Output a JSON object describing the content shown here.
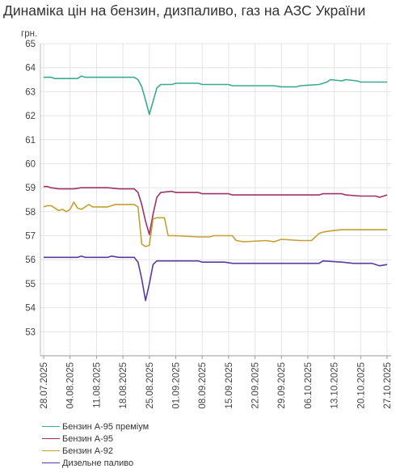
{
  "chart_data": {
    "type": "line",
    "title": "Динаміка цін на бензин, дизпаливо, газ на АЗС України",
    "ylabel": "грн.",
    "ylim": [
      52,
      65
    ],
    "yticks": [
      53,
      54,
      55,
      56,
      57,
      58,
      59,
      60,
      61,
      62,
      63,
      64,
      65
    ],
    "x_tick_labels": [
      "28.07.2025",
      "04.08.2025",
      "11.08.2025",
      "18.08.2025",
      "25.08.2025",
      "01.09.2025",
      "08.09.2025",
      "15.09.2025",
      "22.09.2025",
      "29.09.2025",
      "06.10.2025",
      "13.10.2025",
      "20.10.2025",
      "27.10.2025"
    ],
    "x_range_days": [
      0,
      91
    ],
    "grid": true,
    "legend_position": "bottom-left",
    "series": [
      {
        "name": "Бензин А-95 преміум",
        "color": "#3aaa8f",
        "points": [
          [
            0,
            63.6
          ],
          [
            2,
            63.6
          ],
          [
            3,
            63.55
          ],
          [
            6,
            63.55
          ],
          [
            9,
            63.55
          ],
          [
            10,
            63.65
          ],
          [
            11,
            63.6
          ],
          [
            13,
            63.6
          ],
          [
            17,
            63.6
          ],
          [
            21,
            63.6
          ],
          [
            24,
            63.6
          ],
          [
            25,
            63.5
          ],
          [
            26,
            63.2
          ],
          [
            27,
            62.65
          ],
          [
            28,
            62.05
          ],
          [
            29,
            62.6
          ],
          [
            30,
            63.15
          ],
          [
            31,
            63.3
          ],
          [
            34,
            63.3
          ],
          [
            35,
            63.35
          ],
          [
            41,
            63.35
          ],
          [
            42,
            63.3
          ],
          [
            49,
            63.3
          ],
          [
            50,
            63.25
          ],
          [
            55,
            63.25
          ],
          [
            61,
            63.25
          ],
          [
            63,
            63.2
          ],
          [
            67,
            63.2
          ],
          [
            68,
            63.25
          ],
          [
            73,
            63.3
          ],
          [
            75,
            63.4
          ],
          [
            76,
            63.5
          ],
          [
            79,
            63.45
          ],
          [
            80,
            63.5
          ],
          [
            83,
            63.45
          ],
          [
            84,
            63.4
          ],
          [
            91,
            63.4
          ]
        ]
      },
      {
        "name": "Бензин А-95",
        "color": "#a0306a",
        "points": [
          [
            0,
            59.05
          ],
          [
            1,
            59.05
          ],
          [
            2,
            59.0
          ],
          [
            4,
            58.95
          ],
          [
            6,
            58.95
          ],
          [
            8,
            58.95
          ],
          [
            10,
            59.0
          ],
          [
            17,
            59.0
          ],
          [
            20,
            58.95
          ],
          [
            24,
            58.95
          ],
          [
            25,
            58.8
          ],
          [
            26,
            58.3
          ],
          [
            27,
            57.6
          ],
          [
            28,
            57.05
          ],
          [
            29,
            57.9
          ],
          [
            30,
            58.6
          ],
          [
            31,
            58.8
          ],
          [
            34,
            58.85
          ],
          [
            35,
            58.8
          ],
          [
            41,
            58.8
          ],
          [
            42,
            58.75
          ],
          [
            49,
            58.75
          ],
          [
            50,
            58.7
          ],
          [
            73,
            58.7
          ],
          [
            74,
            58.75
          ],
          [
            79,
            58.75
          ],
          [
            80,
            58.7
          ],
          [
            84,
            58.65
          ],
          [
            88,
            58.65
          ],
          [
            89,
            58.6
          ],
          [
            91,
            58.7
          ]
        ]
      },
      {
        "name": "Бензин А-92",
        "color": "#c4a032",
        "points": [
          [
            0,
            58.2
          ],
          [
            1,
            58.25
          ],
          [
            2,
            58.25
          ],
          [
            3,
            58.15
          ],
          [
            4,
            58.05
          ],
          [
            5,
            58.1
          ],
          [
            6,
            58.0
          ],
          [
            7,
            58.1
          ],
          [
            8,
            58.4
          ],
          [
            9,
            58.15
          ],
          [
            10,
            58.1
          ],
          [
            11,
            58.2
          ],
          [
            12,
            58.3
          ],
          [
            13,
            58.2
          ],
          [
            15,
            58.2
          ],
          [
            17,
            58.2
          ],
          [
            18,
            58.25
          ],
          [
            19,
            58.3
          ],
          [
            23,
            58.3
          ],
          [
            24,
            58.3
          ],
          [
            25,
            58.2
          ],
          [
            26,
            56.65
          ],
          [
            27,
            56.55
          ],
          [
            28,
            56.6
          ],
          [
            29,
            57.7
          ],
          [
            30,
            57.75
          ],
          [
            32,
            57.75
          ],
          [
            33,
            57.0
          ],
          [
            35,
            57.0
          ],
          [
            41,
            56.95
          ],
          [
            44,
            56.95
          ],
          [
            45,
            57.0
          ],
          [
            50,
            57.0
          ],
          [
            51,
            56.8
          ],
          [
            53,
            56.75
          ],
          [
            59,
            56.8
          ],
          [
            61,
            56.75
          ],
          [
            63,
            56.85
          ],
          [
            68,
            56.8
          ],
          [
            69,
            56.8
          ],
          [
            71,
            56.8
          ],
          [
            73,
            57.1
          ],
          [
            74,
            57.15
          ],
          [
            76,
            57.2
          ],
          [
            79,
            57.25
          ],
          [
            84,
            57.25
          ],
          [
            88,
            57.25
          ],
          [
            91,
            57.25
          ]
        ]
      },
      {
        "name": "Дизельне паливо",
        "color": "#5a3a9e",
        "points": [
          [
            0,
            56.1
          ],
          [
            9,
            56.1
          ],
          [
            10,
            56.15
          ],
          [
            11,
            56.1
          ],
          [
            17,
            56.1
          ],
          [
            18,
            56.15
          ],
          [
            20,
            56.1
          ],
          [
            24,
            56.1
          ],
          [
            25,
            55.9
          ],
          [
            26,
            55.2
          ],
          [
            27,
            54.3
          ],
          [
            28,
            55.0
          ],
          [
            29,
            55.8
          ],
          [
            30,
            55.95
          ],
          [
            34,
            55.95
          ],
          [
            41,
            55.95
          ],
          [
            42,
            55.9
          ],
          [
            48,
            55.9
          ],
          [
            50,
            55.85
          ],
          [
            55,
            55.85
          ],
          [
            60,
            55.85
          ],
          [
            65,
            55.85
          ],
          [
            73,
            55.85
          ],
          [
            74,
            55.95
          ],
          [
            79,
            55.9
          ],
          [
            82,
            55.85
          ],
          [
            84,
            55.85
          ],
          [
            87,
            55.85
          ],
          [
            89,
            55.75
          ],
          [
            91,
            55.8
          ]
        ]
      }
    ]
  }
}
